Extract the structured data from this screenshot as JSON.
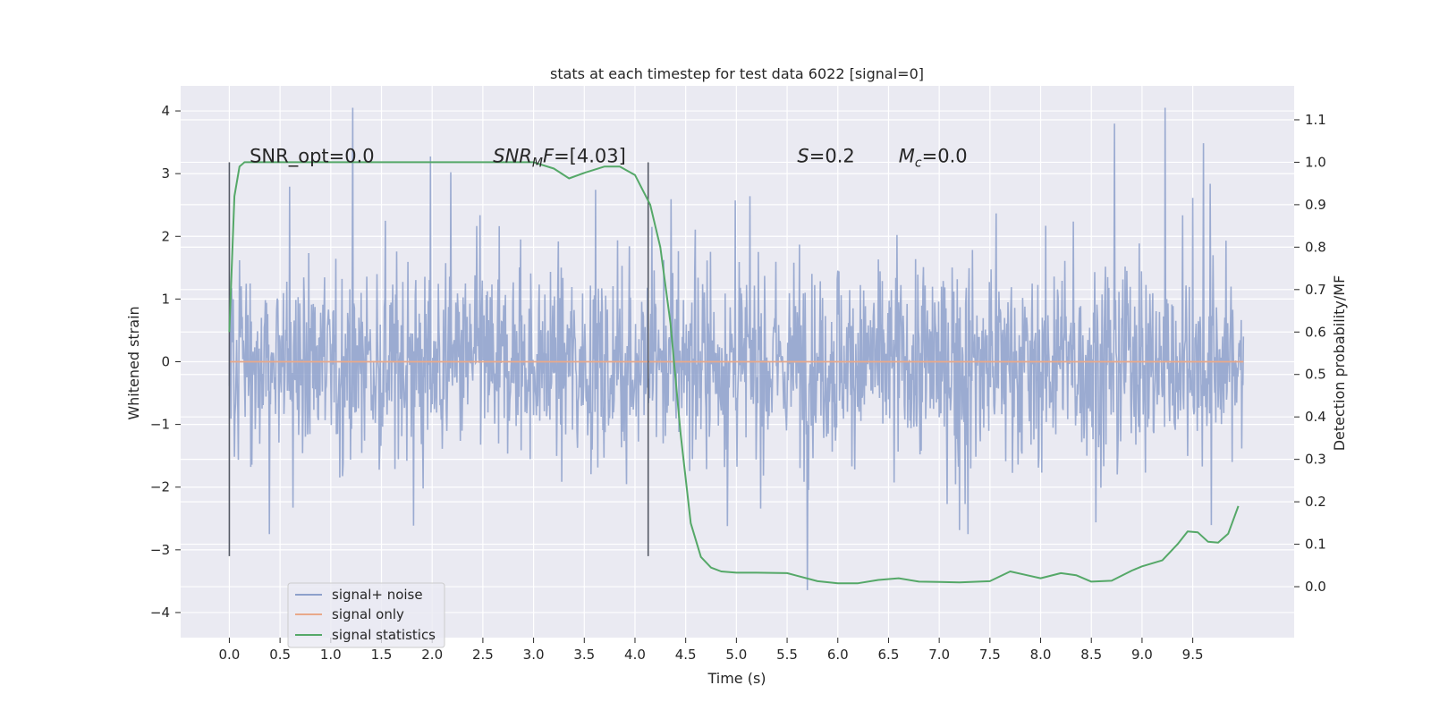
{
  "chart_data": {
    "type": "line",
    "title": "stats at each timestep for test data 6022 [signal=0]",
    "xlabel": "Time (s)",
    "ylabel": "Whitened strain",
    "ylabel_right": "Detection probability/MF",
    "xlim": [
      -0.48,
      10.5
    ],
    "ylim": [
      -4.4,
      4.4
    ],
    "ylim_right": [
      -0.12,
      1.18
    ],
    "x_ticks": [
      0.0,
      0.5,
      1.0,
      1.5,
      2.0,
      2.5,
      3.0,
      3.5,
      4.0,
      4.5,
      5.0,
      5.5,
      6.0,
      6.5,
      7.0,
      7.5,
      8.0,
      8.5,
      9.0,
      9.5
    ],
    "x_tick_labels": [
      "0.0",
      "0.5",
      "1.0",
      "1.5",
      "2.0",
      "2.5",
      "3.0",
      "3.5",
      "4.0",
      "4.5",
      "5.0",
      "5.5",
      "6.0",
      "6.5",
      "7.0",
      "7.5",
      "8.0",
      "8.5",
      "9.0",
      "9.5"
    ],
    "y_ticks": [
      -4,
      -3,
      -2,
      -1,
      0,
      1,
      2,
      3,
      4
    ],
    "y_tick_labels": [
      "−4",
      "−3",
      "−2",
      "−1",
      "0",
      "1",
      "2",
      "3",
      "4"
    ],
    "y_right_ticks": [
      0.0,
      0.1,
      0.2,
      0.3,
      0.4,
      0.5,
      0.6,
      0.7,
      0.8,
      0.9,
      1.0,
      1.1
    ],
    "y_right_tick_labels": [
      "0.0",
      "0.1",
      "0.2",
      "0.3",
      "0.4",
      "0.5",
      "0.6",
      "0.7",
      "0.8",
      "0.9",
      "1.0",
      "1.1"
    ],
    "grid": true,
    "legend_position": "bottom-left",
    "series": [
      {
        "name": "signal+ noise",
        "color": "#8da0cb",
        "axis": "left",
        "x_range": [
          0.0,
          10.0
        ],
        "note_values": "dense whitened noise, |amplitude| mostly within 1.3, peaks to about 4.0 and down to about -3.7",
        "envelope_upper": 4.05,
        "envelope_lower": -3.72
      },
      {
        "name": "signal only",
        "color": "#e9a98a",
        "axis": "left",
        "x": [
          0.0,
          10.0
        ],
        "y": [
          0.0,
          0.0
        ]
      },
      {
        "name": "signal statistics",
        "color": "#55a868",
        "axis": "right",
        "x": [
          0.0,
          0.05,
          0.1,
          0.15,
          0.2,
          0.3,
          1.0,
          2.0,
          2.5,
          3.0,
          3.2,
          3.35,
          3.5,
          3.7,
          3.85,
          4.0,
          4.15,
          4.25,
          4.35,
          4.45,
          4.55,
          4.65,
          4.75,
          4.85,
          5.0,
          5.2,
          5.5,
          5.8,
          6.0,
          6.2,
          6.4,
          6.6,
          6.8,
          7.0,
          7.2,
          7.5,
          7.7,
          7.85,
          8.0,
          8.2,
          8.35,
          8.5,
          8.7,
          8.9,
          9.0,
          9.2,
          9.35,
          9.45,
          9.55,
          9.65,
          9.75,
          9.85,
          9.95
        ],
        "y": [
          0.6,
          0.92,
          0.99,
          1.0,
          1.0,
          1.0,
          1.0,
          1.0,
          1.0,
          1.0,
          0.985,
          0.962,
          0.975,
          0.99,
          0.99,
          0.97,
          0.9,
          0.8,
          0.62,
          0.36,
          0.15,
          0.07,
          0.045,
          0.036,
          0.033,
          0.033,
          0.032,
          0.013,
          0.008,
          0.008,
          0.016,
          0.02,
          0.012,
          0.011,
          0.01,
          0.013,
          0.036,
          0.028,
          0.02,
          0.032,
          0.027,
          0.012,
          0.014,
          0.038,
          0.048,
          0.062,
          0.1,
          0.13,
          0.128,
          0.106,
          0.104,
          0.125,
          0.19
        ]
      }
    ],
    "vlines": [
      {
        "x": 0.0,
        "y_from": -3.1,
        "y_to": 3.18
      },
      {
        "x": 4.13,
        "y_from": -3.1,
        "y_to": 3.18
      }
    ],
    "annotations": [
      {
        "key": "snr_opt",
        "x": 0.2,
        "y": 3.18,
        "text": "SNR_opt=0.0"
      },
      {
        "key": "snr_mf",
        "x": 2.6,
        "y": 3.18,
        "base": "SNR",
        "sub": "M",
        "rest": "F=[4.03]"
      },
      {
        "key": "s",
        "x": 5.6,
        "y": 3.18,
        "base": "S",
        "rest": "=0.2"
      },
      {
        "key": "mc",
        "x": 6.6,
        "y": 3.18,
        "base": "M",
        "sub": "c",
        "rest": "=0.0"
      }
    ]
  }
}
